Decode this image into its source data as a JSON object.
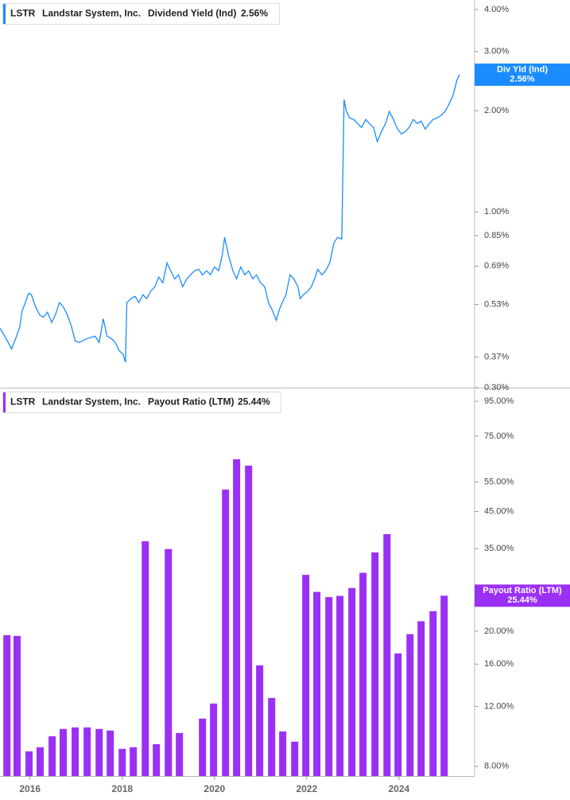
{
  "chart_data": [
    {
      "type": "line",
      "ticker": "LSTR",
      "company": "Landstar System, Inc.",
      "log_scale": true,
      "tag_label": "Div Yld (Ind)",
      "last_value_label": "2.56%",
      "xlim": [
        2015.35,
        2025.64
      ],
      "ylim": [
        0.3,
        4.27
      ],
      "yticks": [
        {
          "value": 4,
          "label": "4.00%"
        },
        {
          "value": 3,
          "label": "3.00%"
        },
        {
          "value": 2,
          "label": "2.00%"
        },
        {
          "value": 1,
          "label": "1.00%"
        },
        {
          "value": 0.85,
          "label": "0.85%"
        },
        {
          "value": 0.69,
          "label": "0.69%"
        },
        {
          "value": 0.53,
          "label": "0.53%"
        },
        {
          "value": 0.37,
          "label": "0.37%"
        },
        {
          "value": 0.3,
          "label": "0.30%"
        }
      ],
      "series": [
        {
          "name": "Dividend Yield (Ind)",
          "color": "#1a8cff",
          "x": [
            2015.35,
            2015.43,
            2015.55,
            2015.6,
            2015.69,
            2015.78,
            2015.83,
            2015.9,
            2015.97,
            2016.03,
            2016.12,
            2016.21,
            2016.29,
            2016.38,
            2016.47,
            2016.55,
            2016.64,
            2016.72,
            2016.81,
            2016.9,
            2016.98,
            2017.07,
            2017.24,
            2017.41,
            2017.5,
            2017.59,
            2017.67,
            2017.76,
            2017.85,
            2017.93,
            2018.02,
            2018.07,
            2018.1,
            2018.19,
            2018.28,
            2018.36,
            2018.45,
            2018.53,
            2018.62,
            2018.71,
            2018.79,
            2018.88,
            2018.97,
            2019.05,
            2019.14,
            2019.22,
            2019.31,
            2019.4,
            2019.48,
            2019.57,
            2019.66,
            2019.74,
            2019.83,
            2019.91,
            2020.0,
            2020.09,
            2020.17,
            2020.22,
            2020.31,
            2020.4,
            2020.48,
            2020.57,
            2020.66,
            2020.74,
            2020.83,
            2020.91,
            2021.0,
            2021.09,
            2021.17,
            2021.26,
            2021.34,
            2021.41,
            2021.47,
            2021.55,
            2021.64,
            2021.72,
            2021.81,
            2021.86,
            2021.93,
            2022.03,
            2022.1,
            2022.17,
            2022.24,
            2022.33,
            2022.41,
            2022.5,
            2022.59,
            2022.67,
            2022.76,
            2022.81,
            2022.86,
            2022.93,
            2023.02,
            2023.1,
            2023.19,
            2023.28,
            2023.36,
            2023.45,
            2023.53,
            2023.62,
            2023.71,
            2023.79,
            2023.88,
            2023.97,
            2024.05,
            2024.14,
            2024.22,
            2024.31,
            2024.4,
            2024.48,
            2024.57,
            2024.66,
            2024.74,
            2024.83,
            2024.91,
            2025.0,
            2025.09,
            2025.17,
            2025.26,
            2025.31
          ],
          "values": [
            0.451,
            0.432,
            0.404,
            0.391,
            0.42,
            0.456,
            0.508,
            0.537,
            0.573,
            0.567,
            0.523,
            0.494,
            0.486,
            0.503,
            0.469,
            0.494,
            0.537,
            0.523,
            0.494,
            0.456,
            0.413,
            0.409,
            0.42,
            0.427,
            0.409,
            0.481,
            0.427,
            0.42,
            0.409,
            0.387,
            0.377,
            0.357,
            0.537,
            0.552,
            0.561,
            0.537,
            0.567,
            0.552,
            0.582,
            0.599,
            0.64,
            0.615,
            0.705,
            0.668,
            0.632,
            0.65,
            0.599,
            0.632,
            0.65,
            0.668,
            0.675,
            0.65,
            0.668,
            0.65,
            0.686,
            0.668,
            0.745,
            0.84,
            0.737,
            0.668,
            0.632,
            0.686,
            0.65,
            0.668,
            0.632,
            0.65,
            0.615,
            0.599,
            0.537,
            0.508,
            0.476,
            0.514,
            0.537,
            0.567,
            0.65,
            0.632,
            0.599,
            0.552,
            0.567,
            0.582,
            0.599,
            0.632,
            0.675,
            0.65,
            0.668,
            0.705,
            0.809,
            0.84,
            0.83,
            2.158,
            1.99,
            1.905,
            1.884,
            1.832,
            1.783,
            1.884,
            1.832,
            1.783,
            1.617,
            1.735,
            1.832,
            1.99,
            1.884,
            1.763,
            1.707,
            1.735,
            1.783,
            1.884,
            1.832,
            1.862,
            1.763,
            1.832,
            1.884,
            1.905,
            1.935,
            1.99,
            2.099,
            2.218,
            2.473,
            2.56
          ]
        }
      ]
    },
    {
      "type": "bar",
      "ticker": "LSTR",
      "company": "Landstar System, Inc.",
      "log_scale": true,
      "tag_label": "Payout Ratio (LTM)",
      "last_value_label": "25.44%",
      "xlim": [
        2015.35,
        2025.64
      ],
      "ylim": [
        7.49,
        103.6
      ],
      "xticks": [
        2016,
        2018,
        2020,
        2022,
        2024
      ],
      "yticks": [
        {
          "value": 95,
          "label": "95.00%"
        },
        {
          "value": 75,
          "label": "75.00%"
        },
        {
          "value": 55,
          "label": "55.00%"
        },
        {
          "value": 45,
          "label": "45.00%"
        },
        {
          "value": 35,
          "label": "35.00%"
        },
        {
          "value": 20,
          "label": "20.00%"
        },
        {
          "value": 16,
          "label": "16.00%"
        },
        {
          "value": 12,
          "label": "12.00%"
        },
        {
          "value": 8,
          "label": "8.00%"
        }
      ],
      "series": [
        {
          "name": "Payout Ratio (LTM)",
          "color": "#9b30f5",
          "x": [
            2015.5,
            2015.72,
            2015.98,
            2016.22,
            2016.48,
            2016.72,
            2016.98,
            2017.24,
            2017.5,
            2017.74,
            2018.0,
            2018.24,
            2018.5,
            2018.74,
            2019.0,
            2019.24,
            2019.74,
            2019.98,
            2020.24,
            2020.48,
            2020.74,
            2020.98,
            2021.24,
            2021.48,
            2021.74,
            2021.98,
            2022.22,
            2022.48,
            2022.72,
            2022.98,
            2023.22,
            2023.48,
            2023.74,
            2023.98,
            2024.24,
            2024.48,
            2024.74,
            2024.98
          ],
          "values": [
            19.47,
            19.37,
            8.86,
            9.11,
            9.81,
            10.31,
            10.42,
            10.42,
            10.31,
            10.2,
            9.01,
            9.11,
            36.8,
            9.3,
            34.9,
            10.03,
            11.06,
            12.25,
            52.2,
            64.1,
            61.4,
            15.87,
            12.72,
            10.14,
            9.46,
            29.3,
            26.1,
            25.2,
            25.4,
            26.8,
            29.7,
            34.1,
            38.6,
            17.2,
            19.6,
            21.4,
            22.9,
            25.44
          ]
        }
      ]
    }
  ]
}
